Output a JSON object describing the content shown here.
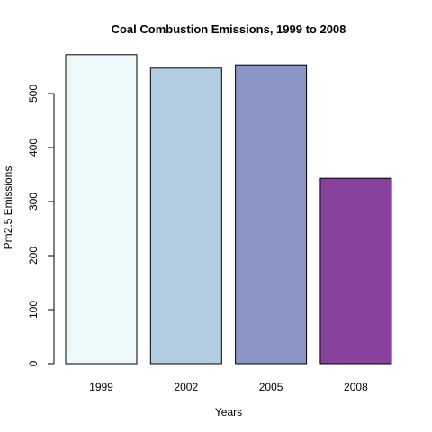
{
  "chart_data": {
    "type": "bar",
    "title": "Coal Combustion Emissions, 1999 to 2008",
    "xlabel": "Years",
    "ylabel": "Pm2.5 Emissions",
    "categories": [
      "1999",
      "2002",
      "2005",
      "2008"
    ],
    "values": [
      572,
      547,
      553,
      343
    ],
    "colors": [
      "#EDF8FB",
      "#B3CDE3",
      "#8C96C6",
      "#88419D"
    ],
    "yticks": [
      0,
      100,
      200,
      300,
      400,
      500
    ],
    "ylim": [
      0,
      600
    ],
    "grid": false,
    "legend": "none"
  }
}
